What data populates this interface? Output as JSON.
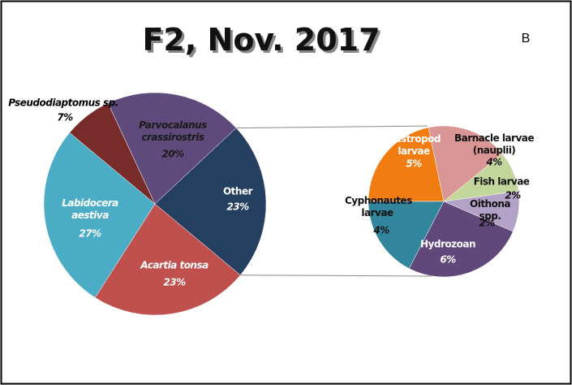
{
  "chart_data": {
    "type": "pie-of-pie",
    "title": "F2, Nov. 2017",
    "panel_label": "B",
    "main": {
      "categories": [
        "Other",
        "Acartia tonsa",
        "Labidocera aestiva",
        "Pseudodiaptomus sp.",
        "Parvocalanus crassirostris"
      ],
      "values": [
        23,
        23,
        27,
        7,
        20
      ],
      "value_labels": [
        "23%",
        "23%",
        "27%",
        "7%",
        "20%"
      ],
      "colors": [
        "#243f60",
        "#c0504d",
        "#4bacc6",
        "#772c2a",
        "#5f4b7b"
      ]
    },
    "detail": {
      "categories": [
        "Gastropod larvae",
        "Barnacle larvae (nauplii)",
        "Fish larvae",
        "Oithona spp.",
        "Hydrozoan",
        "Cyphonautes larvae"
      ],
      "values": [
        5,
        4,
        2,
        2,
        6,
        4
      ],
      "value_labels": [
        "5%",
        "4%",
        "2%",
        "2%",
        "6%",
        "4%"
      ],
      "colors": [
        "#f07c12",
        "#d99694",
        "#c3d69b",
        "#b3a2c7",
        "#60497a",
        "#31859c"
      ]
    }
  }
}
